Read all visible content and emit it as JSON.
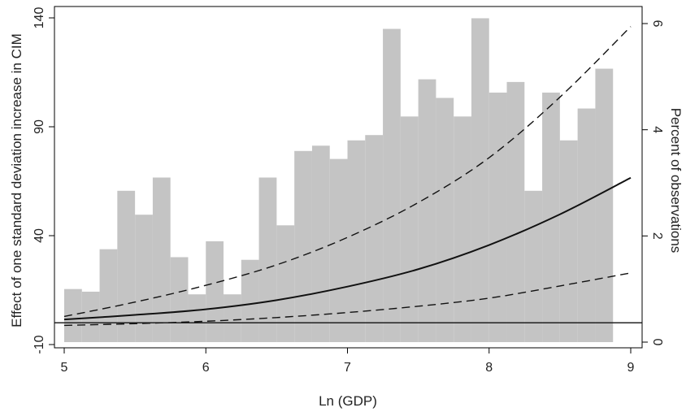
{
  "chart_data": {
    "type": "bar+line",
    "xlabel": "Ln (GDP)",
    "ylabel_left": "Effect of one standard deviation increase in CIM",
    "ylabel_right": "Percent of observations",
    "x_range": [
      5,
      9
    ],
    "y_left_range": [
      -10,
      140
    ],
    "y_right_range": [
      0,
      6
    ],
    "x_ticks": [
      "5",
      "6",
      "7",
      "8",
      "9"
    ],
    "y_left_ticks": [
      "-10",
      "40",
      "90",
      "140"
    ],
    "y_right_ticks": [
      "0",
      "2",
      "4",
      "6"
    ],
    "histogram": {
      "bin_width": 0.125,
      "bins": [
        {
          "x0": 5.0,
          "percent": 1.0
        },
        {
          "x0": 5.125,
          "percent": 0.95
        },
        {
          "x0": 5.25,
          "percent": 1.75
        },
        {
          "x0": 5.375,
          "percent": 2.85
        },
        {
          "x0": 5.5,
          "percent": 2.4
        },
        {
          "x0": 5.625,
          "percent": 3.1
        },
        {
          "x0": 5.75,
          "percent": 1.6
        },
        {
          "x0": 5.875,
          "percent": 0.9
        },
        {
          "x0": 6.0,
          "percent": 1.9
        },
        {
          "x0": 6.125,
          "percent": 0.9
        },
        {
          "x0": 6.25,
          "percent": 1.55
        },
        {
          "x0": 6.375,
          "percent": 3.1
        },
        {
          "x0": 6.5,
          "percent": 2.2
        },
        {
          "x0": 6.625,
          "percent": 3.6
        },
        {
          "x0": 6.75,
          "percent": 3.7
        },
        {
          "x0": 6.875,
          "percent": 3.45
        },
        {
          "x0": 7.0,
          "percent": 3.8
        },
        {
          "x0": 7.125,
          "percent": 3.9
        },
        {
          "x0": 7.25,
          "percent": 5.9
        },
        {
          "x0": 7.375,
          "percent": 4.25
        },
        {
          "x0": 7.5,
          "percent": 4.95
        },
        {
          "x0": 7.625,
          "percent": 4.6
        },
        {
          "x0": 7.75,
          "percent": 4.25
        },
        {
          "x0": 7.875,
          "percent": 6.1
        },
        {
          "x0": 8.0,
          "percent": 4.7
        },
        {
          "x0": 8.125,
          "percent": 4.9
        },
        {
          "x0": 8.25,
          "percent": 2.85
        },
        {
          "x0": 8.375,
          "percent": 4.7
        },
        {
          "x0": 8.5,
          "percent": 3.8
        },
        {
          "x0": 8.625,
          "percent": 4.4
        },
        {
          "x0": 8.75,
          "percent": 5.15
        }
      ]
    },
    "series": [
      {
        "style": "solid",
        "x": [
          5.0,
          5.5,
          6.0,
          6.5,
          7.0,
          7.5,
          8.0,
          8.5,
          9.0
        ],
        "y": [
          1.5,
          3.6,
          6.2,
          10.4,
          16.6,
          24.6,
          35.7,
          49.8,
          66.6
        ]
      },
      {
        "style": "dashed",
        "x": [
          5.0,
          5.5,
          6.0,
          6.5,
          7.0,
          7.5,
          8.0,
          8.5,
          9.0
        ],
        "y": [
          -1.2,
          -0.4,
          0.7,
          2.4,
          4.7,
          7.6,
          11.3,
          16.9,
          22.9
        ]
      },
      {
        "style": "dashed",
        "x": [
          5.0,
          5.5,
          6.0,
          6.5,
          7.0,
          7.5,
          8.0,
          8.5,
          9.0
        ],
        "y": [
          2.9,
          9.5,
          17.2,
          26.6,
          39.2,
          55.2,
          75.8,
          103.6,
          136.0
        ]
      }
    ],
    "reference_line_y": 0,
    "grid": false
  }
}
